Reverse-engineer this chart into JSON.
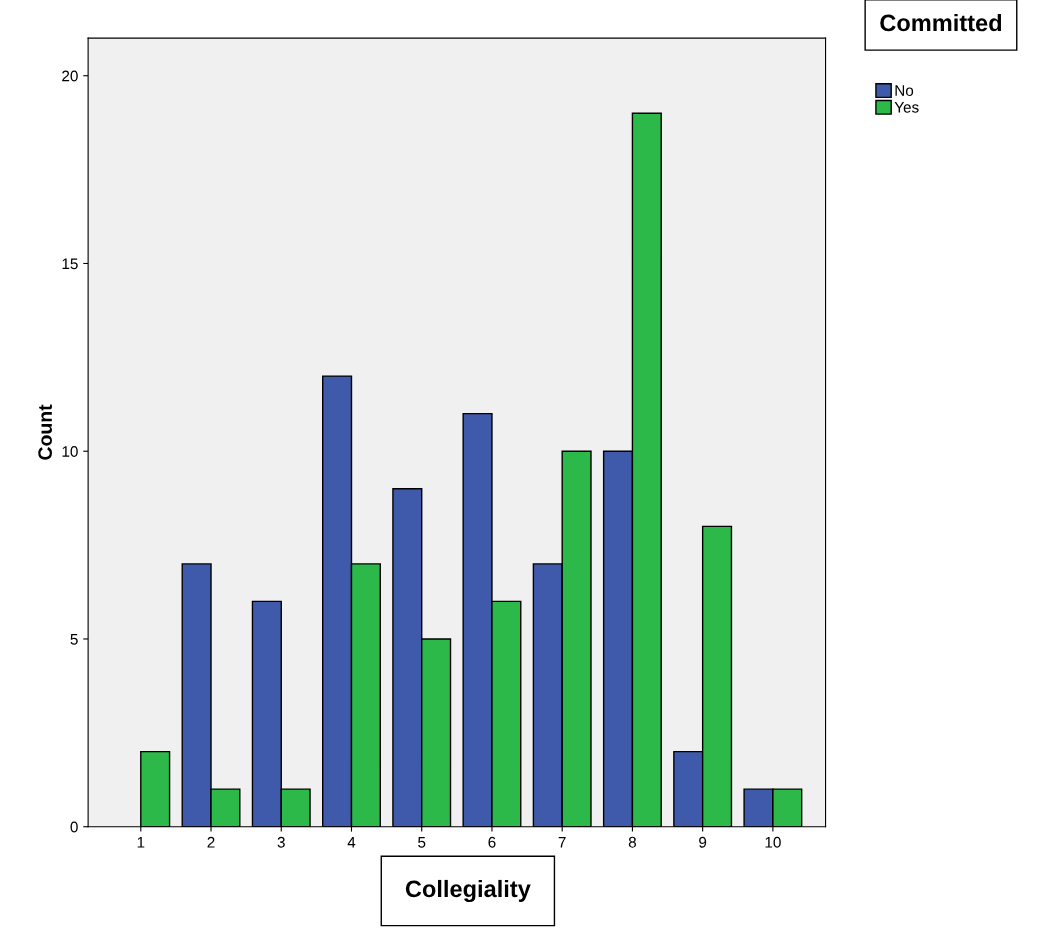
{
  "chart_data": {
    "type": "bar",
    "xlabel": "Collegiality",
    "ylabel": "Count",
    "legend_title": "Committed",
    "categories": [
      "1",
      "2",
      "3",
      "4",
      "5",
      "6",
      "7",
      "8",
      "9",
      "10"
    ],
    "series": [
      {
        "name": "No",
        "color": "#3f5aaa",
        "values": [
          null,
          7,
          6,
          12,
          9,
          11,
          7,
          10,
          2,
          1
        ]
      },
      {
        "name": "Yes",
        "color": "#2db84a",
        "values": [
          2,
          1,
          1,
          7,
          5,
          6,
          10,
          19,
          8,
          1
        ]
      }
    ],
    "ylim": [
      0,
      21
    ],
    "yticks": [
      0,
      5,
      10,
      15,
      20
    ],
    "grid": false,
    "legend": "top right"
  }
}
